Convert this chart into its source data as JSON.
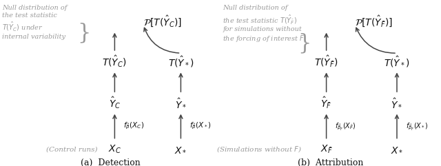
{
  "fig_width": 6.4,
  "fig_height": 2.41,
  "dpi": 100,
  "bg": "#ffffff",
  "arrow_color": "#444444",
  "gray": "#999999",
  "black": "#111111",
  "panel_a": {
    "subfig_label": "(a)  Detection",
    "note_lines": [
      "Null distribution of",
      "the test statistic",
      "$T(\\hat{Y}_C)$ under",
      "internal variability"
    ],
    "P_label": "$\\mathcal{P}[T(\\hat{Y}_C)]$",
    "TYC_label": "$T(\\hat{Y}_C)$",
    "TYs_label": "$T(\\hat{Y}_*)$",
    "YC_label": "$\\hat{Y}_C$",
    "Ys_label": "$\\hat{Y}_*$",
    "fC_label": "$f_{\\hat{\\beta}}(X_C)$",
    "fs_label": "$f_{\\hat{\\beta}}(X_*)$",
    "XC_label": "$X_C$",
    "Xs_label": "$X_*$",
    "ctrl_label": "(Control runs)"
  },
  "panel_b": {
    "subfig_label": "(b)  Attribution",
    "note_lines": [
      "Null distribution of",
      "the test statistic $T(\\hat{Y}_{\\bar{F}})$",
      "for simulations without",
      "the forcing of interest $F$"
    ],
    "P_label": "$\\mathcal{P}[T(\\hat{Y}_{\\bar{F}})]$",
    "TYFb_label": "$T(\\hat{Y}_{\\bar{F}})$",
    "TYs_label": "$T(\\hat{Y}_*)$",
    "YFb_label": "$\\hat{Y}_{\\bar{F}}$",
    "Ys_label": "$\\hat{Y}_*$",
    "fFb_label": "$f_{\\hat{\\beta}_F}(X_{\\bar{F}})$",
    "fs_label": "$f_{\\hat{\\beta}_F}(X_*)$",
    "XFb_label": "$X_{\\bar{F}}$",
    "Xs_label": "$X_*$",
    "ctrl_label": "(Simulations without $F$)"
  }
}
